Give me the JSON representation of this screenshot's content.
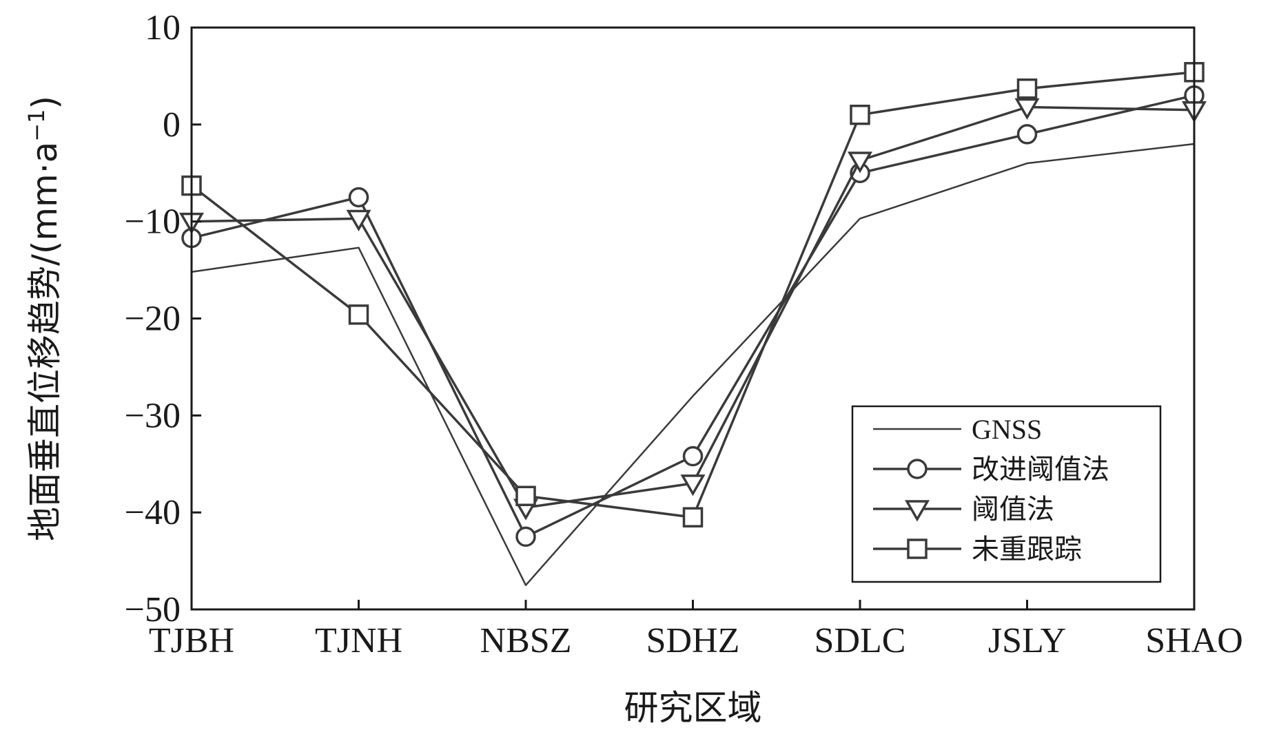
{
  "chart_data": {
    "type": "line",
    "categories": [
      "TJBH",
      "TJNH",
      "NBSZ",
      "SDHZ",
      "SDLC",
      "JSLY",
      "SHAO"
    ],
    "xlabel": "研究区域",
    "ylabel": "地面垂直位移趋势/(mm·a",
    "ylabel_sup": "−1",
    "ylabel_close": ")",
    "ylim": [
      -50,
      10
    ],
    "yticks": [
      10,
      0,
      -10,
      -20,
      -30,
      -40,
      -50
    ],
    "ytick_labels": [
      "10",
      "0",
      "−10",
      "−20",
      "−30",
      "−40",
      "−50"
    ],
    "grid": false,
    "legend_position": "bottom-right",
    "series": [
      {
        "name": "GNSS",
        "marker": "none",
        "values": [
          -15.2,
          -12.7,
          -47.5,
          -28.0,
          -9.7,
          -4.0,
          -2.0
        ]
      },
      {
        "name": "改进阈值法",
        "marker": "circle",
        "values": [
          -11.7,
          -7.5,
          -42.5,
          -34.2,
          -5.0,
          -1.0,
          3.0
        ]
      },
      {
        "name": "阈值法",
        "marker": "triangle-down",
        "values": [
          -10.0,
          -9.7,
          -39.5,
          -37.0,
          -3.7,
          1.8,
          1.5
        ]
      },
      {
        "name": "未重跟踪",
        "marker": "square",
        "values": [
          -6.3,
          -19.6,
          -38.3,
          -40.5,
          1.0,
          3.7,
          5.4
        ]
      }
    ],
    "colors": {
      "line": "#3a3a3a",
      "axis": "#1a1a1a"
    }
  }
}
